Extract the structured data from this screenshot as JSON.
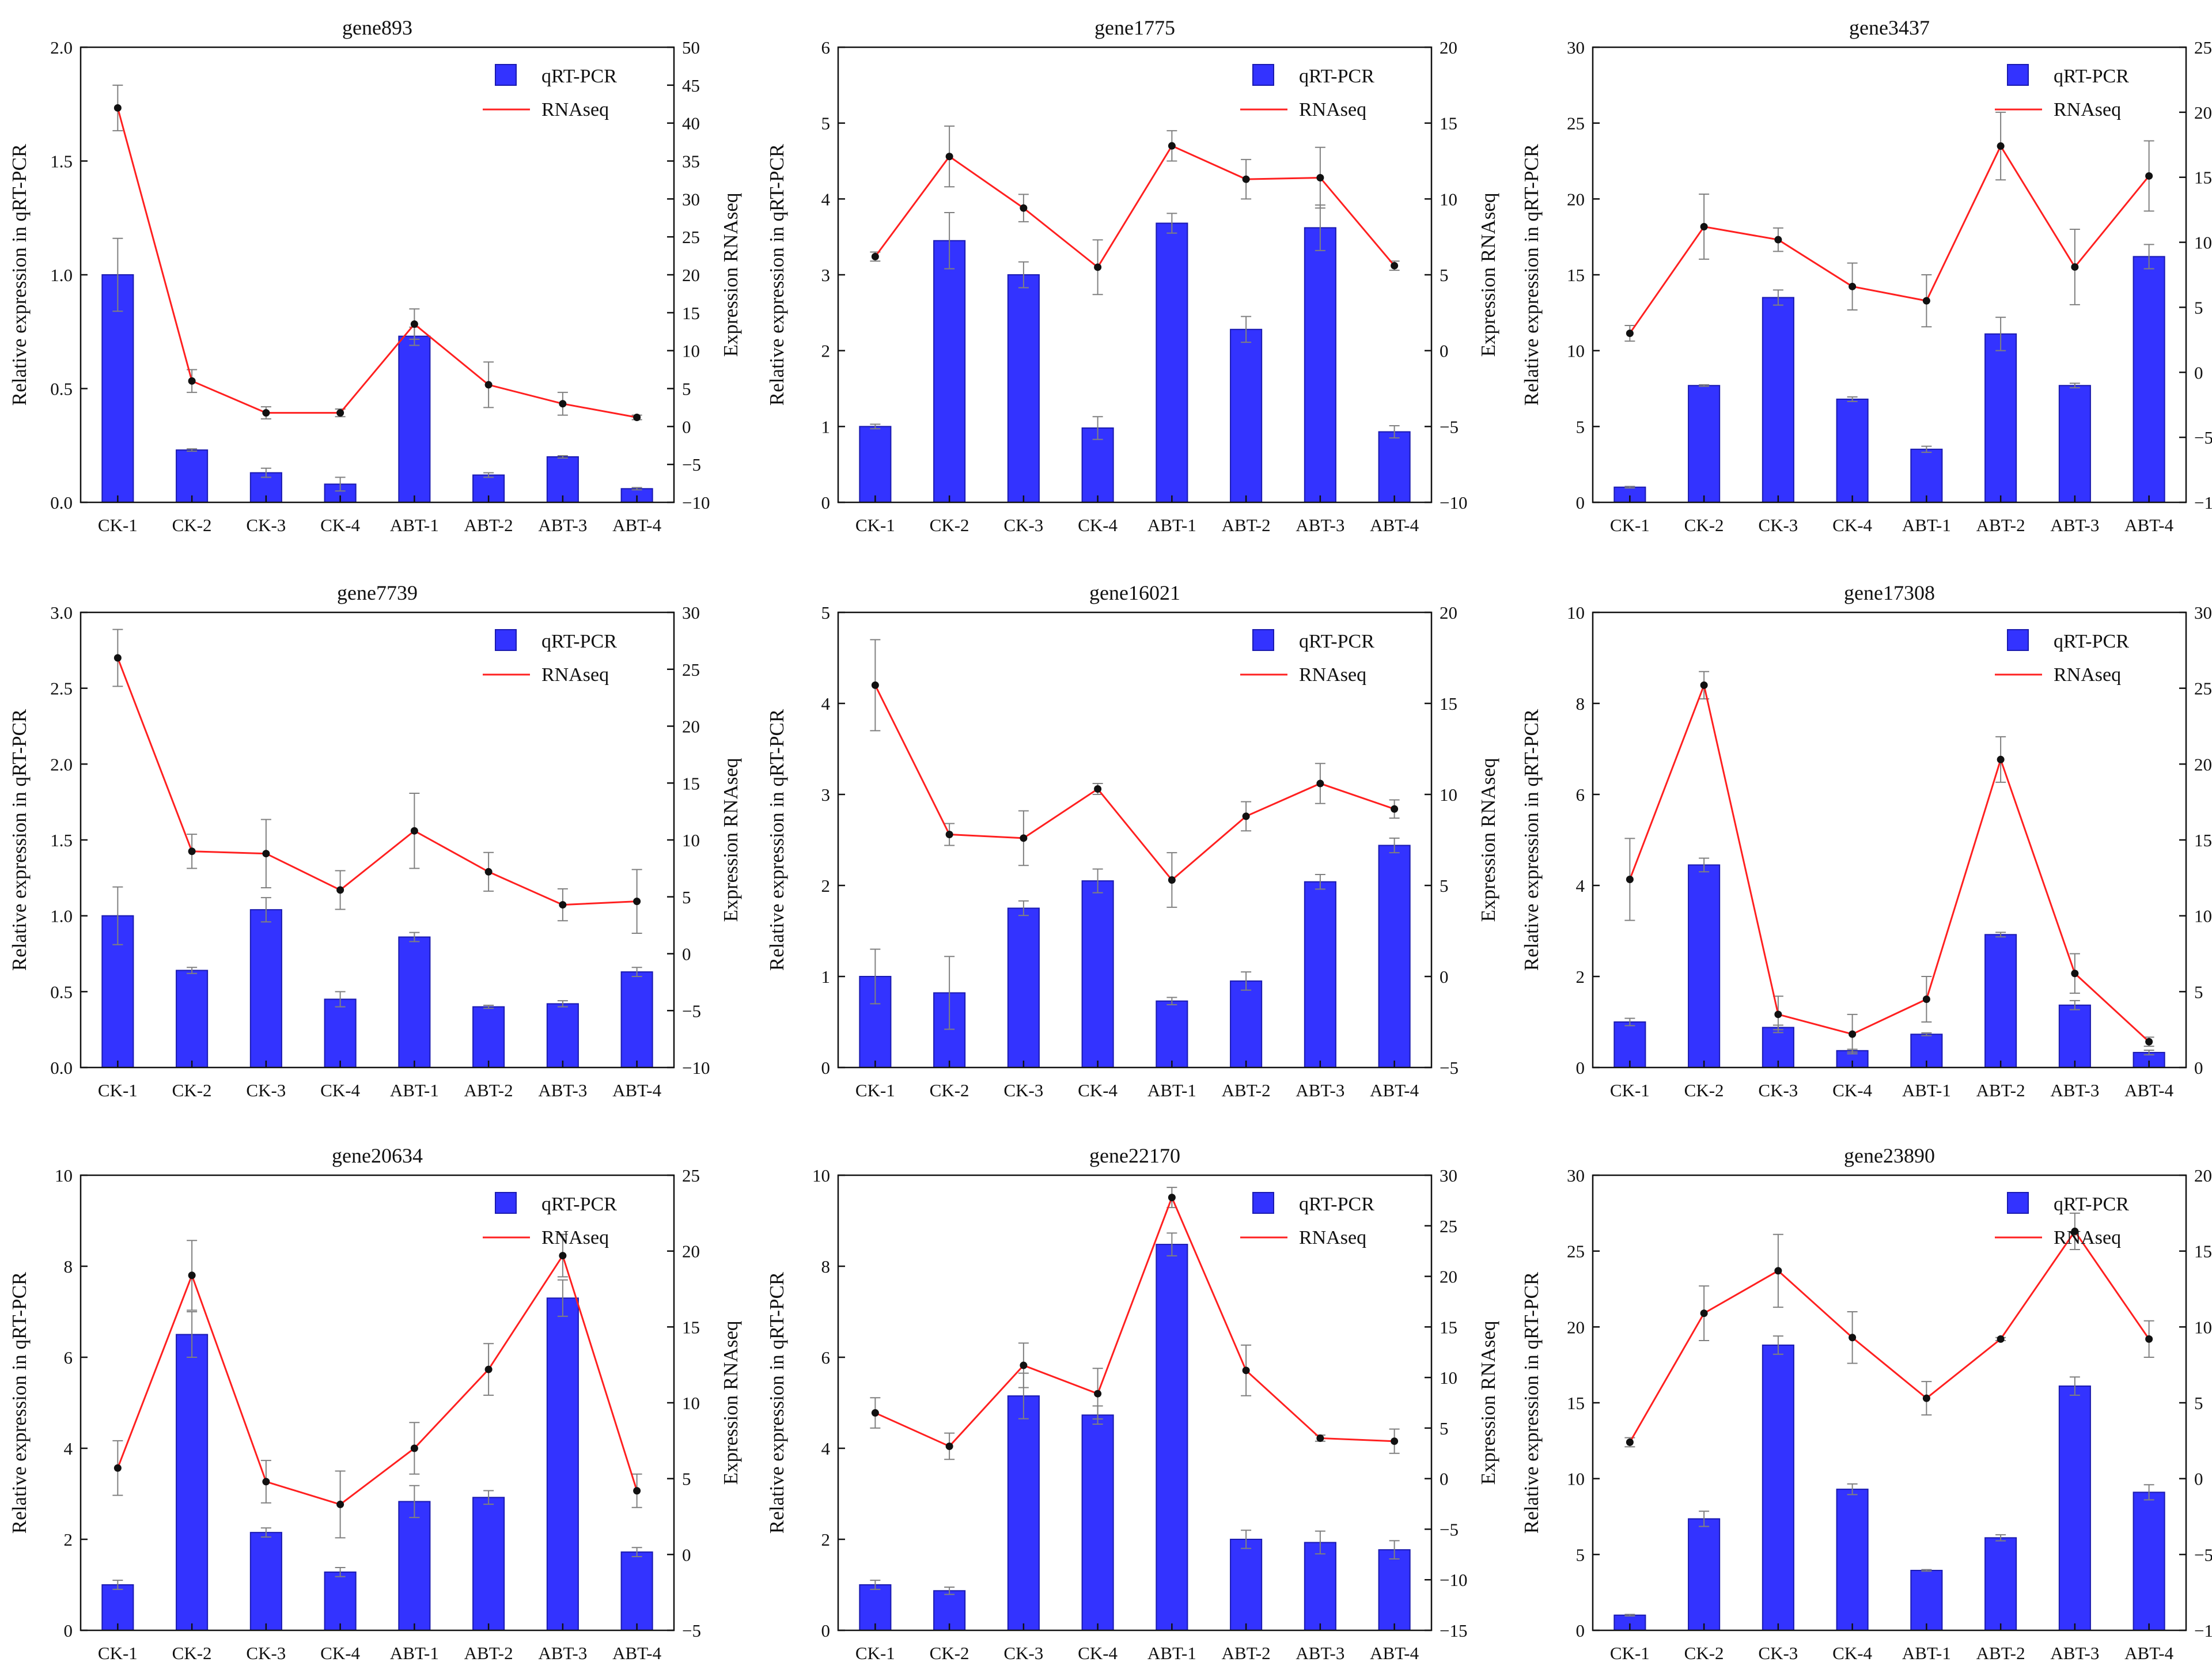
{
  "colors": {
    "bar": "#3333ff",
    "bar_edge": "#1a1ab0",
    "line": "#ff2020",
    "marker": "#111111",
    "errorbar": "#808080",
    "axis": "#111111"
  },
  "legend": {
    "bar_label": "qRT-PCR",
    "line_label": "RNAseq"
  },
  "chart_data": [
    {
      "type": "bar",
      "title": "gene893",
      "categories": [
        "CK-1",
        "CK-2",
        "CK-3",
        "CK-4",
        "ABT-1",
        "ABT-2",
        "ABT-3",
        "ABT-4"
      ],
      "ylabel": "Relative expression in qRT-PCR",
      "y2label": "Expression RNAseq",
      "ylim": [
        0,
        2.0
      ],
      "yticks": [
        0.0,
        0.5,
        1.0,
        1.5,
        2.0
      ],
      "ytick_labels": [
        "0.0",
        "0.5",
        "1.0",
        "1.5",
        "2.0"
      ],
      "y2lim": [
        -10,
        50
      ],
      "y2ticks": [
        -10,
        -5,
        0,
        5,
        10,
        15,
        20,
        25,
        30,
        35,
        40,
        45,
        50
      ],
      "y2tick_labels": [
        "−10",
        "−5",
        "0",
        "5",
        "10",
        "15",
        "20",
        "25",
        "30",
        "35",
        "40",
        "45",
        "50"
      ],
      "series": [
        {
          "name": "qRT-PCR",
          "axis": "left",
          "values": [
            1.0,
            0.23,
            0.13,
            0.08,
            0.73,
            0.12,
            0.2,
            0.06
          ],
          "errors": [
            0.16,
            0.005,
            0.02,
            0.03,
            0.04,
            0.01,
            0.005,
            0.005
          ]
        },
        {
          "name": "RNAseq",
          "axis": "right",
          "values": [
            42,
            6,
            1.8,
            1.8,
            13.5,
            5.5,
            3,
            1.2
          ],
          "errors": [
            3,
            1.5,
            0.8,
            0.5,
            2,
            3,
            1.5,
            0.3
          ]
        }
      ]
    },
    {
      "type": "bar",
      "title": "gene1775",
      "categories": [
        "CK-1",
        "CK-2",
        "CK-3",
        "CK-4",
        "ABT-1",
        "ABT-2",
        "ABT-3",
        "ABT-4"
      ],
      "ylabel": "Relative expression in qRT-PCR",
      "y2label": "Expression RNAseq",
      "ylim": [
        0,
        6
      ],
      "yticks": [
        0,
        1,
        2,
        3,
        4,
        5,
        6
      ],
      "ytick_labels": [
        "0",
        "1",
        "2",
        "3",
        "4",
        "5",
        "6"
      ],
      "y2lim": [
        -10,
        20
      ],
      "y2ticks": [
        -10,
        -5,
        0,
        5,
        10,
        15,
        20
      ],
      "y2tick_labels": [
        "−10",
        "−5",
        "0",
        "5",
        "10",
        "15",
        "20"
      ],
      "series": [
        {
          "name": "qRT-PCR",
          "axis": "left",
          "values": [
            1.0,
            3.45,
            3.0,
            0.98,
            3.68,
            2.28,
            3.62,
            0.93
          ],
          "errors": [
            0.03,
            0.37,
            0.17,
            0.15,
            0.13,
            0.17,
            0.3,
            0.08
          ]
        },
        {
          "name": "RNAseq",
          "axis": "right",
          "values": [
            6.2,
            12.8,
            9.4,
            5.5,
            13.5,
            11.3,
            11.4,
            5.6
          ],
          "errors": [
            0.3,
            2,
            0.9,
            1.8,
            1,
            1.3,
            2,
            0.3
          ]
        }
      ]
    },
    {
      "type": "bar",
      "title": "gene3437",
      "categories": [
        "CK-1",
        "CK-2",
        "CK-3",
        "CK-4",
        "ABT-1",
        "ABT-2",
        "ABT-3",
        "ABT-4"
      ],
      "ylabel": "Relative expression in qRT-PCR",
      "y2label": "Expression RNAseq",
      "ylim": [
        0,
        30
      ],
      "yticks": [
        0,
        5,
        10,
        15,
        20,
        25,
        30
      ],
      "ytick_labels": [
        "0",
        "5",
        "10",
        "15",
        "20",
        "25",
        "30"
      ],
      "y2lim": [
        -10,
        25
      ],
      "y2ticks": [
        -10,
        -5,
        0,
        5,
        10,
        15,
        20,
        25
      ],
      "y2tick_labels": [
        "−10",
        "−5",
        "0",
        "5",
        "10",
        "15",
        "20",
        "25"
      ],
      "series": [
        {
          "name": "qRT-PCR",
          "axis": "left",
          "values": [
            1.0,
            7.7,
            13.5,
            6.8,
            3.5,
            11.1,
            7.7,
            16.2
          ],
          "errors": [
            0.05,
            0.05,
            0.5,
            0.15,
            0.2,
            1.1,
            0.15,
            0.8
          ]
        },
        {
          "name": "RNAseq",
          "axis": "right",
          "values": [
            3,
            11.2,
            10.2,
            6.6,
            5.5,
            17.4,
            8.1,
            15.1
          ],
          "errors": [
            0.6,
            2.5,
            0.9,
            1.8,
            2,
            2.6,
            2.9,
            2.7
          ]
        }
      ]
    },
    {
      "type": "bar",
      "title": "gene7739",
      "categories": [
        "CK-1",
        "CK-2",
        "CK-3",
        "CK-4",
        "ABT-1",
        "ABT-2",
        "ABT-3",
        "ABT-4"
      ],
      "ylabel": "Relative expression in qRT-PCR",
      "y2label": "Expression RNAseq",
      "ylim": [
        0,
        3.0
      ],
      "yticks": [
        0.0,
        0.5,
        1.0,
        1.5,
        2.0,
        2.5,
        3.0
      ],
      "ytick_labels": [
        "0.0",
        "0.5",
        "1.0",
        "1.5",
        "2.0",
        "2.5",
        "3.0"
      ],
      "y2lim": [
        -10,
        30
      ],
      "y2ticks": [
        -10,
        -5,
        0,
        5,
        10,
        15,
        20,
        25,
        30
      ],
      "y2tick_labels": [
        "−10",
        "−5",
        "0",
        "5",
        "10",
        "15",
        "20",
        "25",
        "30"
      ],
      "series": [
        {
          "name": "qRT-PCR",
          "axis": "left",
          "values": [
            1.0,
            0.64,
            1.04,
            0.45,
            0.86,
            0.4,
            0.42,
            0.63
          ],
          "errors": [
            0.19,
            0.02,
            0.08,
            0.05,
            0.03,
            0.01,
            0.02,
            0.03
          ]
        },
        {
          "name": "RNAseq",
          "axis": "right",
          "values": [
            26,
            9,
            8.8,
            5.6,
            10.8,
            7.2,
            4.3,
            4.6
          ],
          "errors": [
            2.5,
            1.5,
            3,
            1.7,
            3.3,
            1.7,
            1.4,
            2.8
          ]
        }
      ]
    },
    {
      "type": "bar",
      "title": "gene16021",
      "categories": [
        "CK-1",
        "CK-2",
        "CK-3",
        "CK-4",
        "ABT-1",
        "ABT-2",
        "ABT-3",
        "ABT-4"
      ],
      "ylabel": "Relative expression in qRT-PCR",
      "y2label": "Expression RNAseq",
      "ylim": [
        0,
        5
      ],
      "yticks": [
        0,
        1,
        2,
        3,
        4,
        5
      ],
      "ytick_labels": [
        "0",
        "1",
        "2",
        "3",
        "4",
        "5"
      ],
      "y2lim": [
        -5,
        20
      ],
      "y2ticks": [
        -5,
        0,
        5,
        10,
        15,
        20
      ],
      "y2tick_labels": [
        "−5",
        "0",
        "5",
        "10",
        "15",
        "20"
      ],
      "series": [
        {
          "name": "qRT-PCR",
          "axis": "left",
          "values": [
            1.0,
            0.82,
            1.75,
            2.05,
            0.73,
            0.95,
            2.04,
            2.44
          ],
          "errors": [
            0.3,
            0.4,
            0.08,
            0.13,
            0.04,
            0.1,
            0.08,
            0.08
          ]
        },
        {
          "name": "RNAseq",
          "axis": "right",
          "values": [
            16,
            7.8,
            7.6,
            10.3,
            5.3,
            8.8,
            10.6,
            9.2
          ],
          "errors": [
            2.5,
            0.6,
            1.5,
            0.3,
            1.5,
            0.8,
            1.1,
            0.5
          ]
        }
      ]
    },
    {
      "type": "bar",
      "title": "gene17308",
      "categories": [
        "CK-1",
        "CK-2",
        "CK-3",
        "CK-4",
        "ABT-1",
        "ABT-2",
        "ABT-3",
        "ABT-4"
      ],
      "ylabel": "Relative expression in qRT-PCR",
      "y2label": "Expression RNAseq",
      "ylim": [
        0,
        10
      ],
      "yticks": [
        0,
        2,
        4,
        6,
        8,
        10
      ],
      "ytick_labels": [
        "0",
        "2",
        "4",
        "6",
        "8",
        "10"
      ],
      "y2lim": [
        0,
        30
      ],
      "y2ticks": [
        0,
        5,
        10,
        15,
        20,
        25,
        30
      ],
      "y2tick_labels": [
        "0",
        "5",
        "10",
        "15",
        "20",
        "25",
        "30"
      ],
      "series": [
        {
          "name": "qRT-PCR",
          "axis": "left",
          "values": [
            1.0,
            4.45,
            0.88,
            0.37,
            0.73,
            2.92,
            1.37,
            0.33
          ],
          "errors": [
            0.08,
            0.15,
            0.05,
            0.03,
            0.03,
            0.05,
            0.1,
            0.05
          ]
        },
        {
          "name": "RNAseq",
          "axis": "right",
          "values": [
            12.4,
            25.2,
            3.5,
            2.2,
            4.5,
            20.3,
            6.2,
            1.7
          ],
          "errors": [
            2.7,
            0.9,
            1.2,
            1.3,
            1.5,
            1.5,
            1.3,
            0.3
          ]
        }
      ]
    },
    {
      "type": "bar",
      "title": "gene20634",
      "categories": [
        "CK-1",
        "CK-2",
        "CK-3",
        "CK-4",
        "ABT-1",
        "ABT-2",
        "ABT-3",
        "ABT-4"
      ],
      "ylabel": "Relative expression in qRT-PCR",
      "y2label": "Expression RNAseq",
      "ylim": [
        0,
        10
      ],
      "yticks": [
        0,
        2,
        4,
        6,
        8,
        10
      ],
      "ytick_labels": [
        "0",
        "2",
        "4",
        "6",
        "8",
        "10"
      ],
      "y2lim": [
        -5,
        25
      ],
      "y2ticks": [
        -5,
        0,
        5,
        10,
        15,
        20,
        25
      ],
      "y2tick_labels": [
        "−5",
        "0",
        "5",
        "10",
        "15",
        "20",
        "25"
      ],
      "series": [
        {
          "name": "qRT-PCR",
          "axis": "left",
          "values": [
            1.0,
            6.5,
            2.15,
            1.28,
            2.83,
            2.92,
            7.3,
            1.72
          ],
          "errors": [
            0.1,
            0.5,
            0.1,
            0.1,
            0.35,
            0.15,
            0.4,
            0.1
          ]
        },
        {
          "name": "RNAseq",
          "axis": "right",
          "values": [
            5.7,
            18.4,
            4.8,
            3.3,
            7.0,
            12.2,
            19.7,
            4.2
          ],
          "errors": [
            1.8,
            2.3,
            1.4,
            2.2,
            1.7,
            1.7,
            1.4,
            1.1
          ]
        }
      ]
    },
    {
      "type": "bar",
      "title": "gene22170",
      "categories": [
        "CK-1",
        "CK-2",
        "CK-3",
        "CK-4",
        "ABT-1",
        "ABT-2",
        "ABT-3",
        "ABT-4"
      ],
      "ylabel": "Relative expression in qRT-PCR",
      "y2label": "Expression RNAseq",
      "ylim": [
        0,
        10
      ],
      "yticks": [
        0,
        2,
        4,
        6,
        8,
        10
      ],
      "ytick_labels": [
        "0",
        "2",
        "4",
        "6",
        "8",
        "10"
      ],
      "y2lim": [
        -15,
        30
      ],
      "y2ticks": [
        -15,
        -10,
        -5,
        0,
        5,
        10,
        15,
        20,
        25,
        30
      ],
      "y2tick_labels": [
        "−15",
        "−10",
        "−5",
        "0",
        "5",
        "10",
        "15",
        "20",
        "25",
        "30"
      ],
      "series": [
        {
          "name": "qRT-PCR",
          "axis": "left",
          "values": [
            1.0,
            0.87,
            5.15,
            4.73,
            8.48,
            2.0,
            1.93,
            1.77
          ],
          "errors": [
            0.1,
            0.08,
            0.5,
            0.2,
            0.25,
            0.2,
            0.25,
            0.2
          ]
        },
        {
          "name": "RNAseq",
          "axis": "right",
          "values": [
            6.5,
            3.2,
            11.2,
            8.4,
            27.8,
            10.7,
            4.0,
            3.7
          ],
          "errors": [
            1.5,
            1.3,
            2.2,
            2.5,
            1.0,
            2.5,
            0.3,
            1.2
          ]
        }
      ]
    },
    {
      "type": "bar",
      "title": "gene23890",
      "categories": [
        "CK-1",
        "CK-2",
        "CK-3",
        "CK-4",
        "ABT-1",
        "ABT-2",
        "ABT-3",
        "ABT-4"
      ],
      "ylabel": "Relative expression in qRT-PCR",
      "y2label": "Expression RNAseq",
      "ylim": [
        0,
        30
      ],
      "yticks": [
        0,
        5,
        10,
        15,
        20,
        25,
        30
      ],
      "ytick_labels": [
        "0",
        "5",
        "10",
        "15",
        "20",
        "25",
        "30"
      ],
      "y2lim": [
        -10,
        20
      ],
      "y2ticks": [
        -10,
        -5,
        0,
        5,
        10,
        15,
        20
      ],
      "y2tick_labels": [
        "−10",
        "−5",
        "0",
        "5",
        "10",
        "15",
        "20"
      ],
      "series": [
        {
          "name": "qRT-PCR",
          "axis": "left",
          "values": [
            1.0,
            7.35,
            18.8,
            9.3,
            3.95,
            6.1,
            16.1,
            9.1
          ],
          "errors": [
            0.05,
            0.5,
            0.6,
            0.35,
            0.05,
            0.2,
            0.6,
            0.5
          ]
        },
        {
          "name": "RNAseq",
          "axis": "right",
          "values": [
            2.4,
            10.9,
            13.7,
            9.3,
            5.3,
            9.2,
            16.3,
            9.2
          ],
          "errors": [
            0.3,
            1.8,
            2.4,
            1.7,
            1.1,
            0.1,
            1.2,
            1.2
          ]
        }
      ]
    }
  ]
}
